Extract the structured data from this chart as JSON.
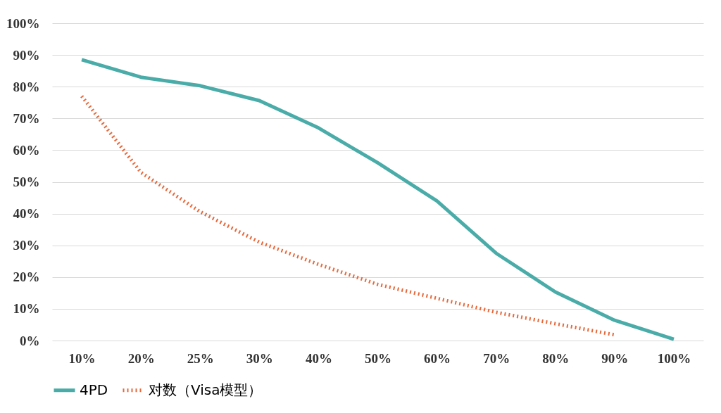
{
  "chart_data": {
    "type": "line",
    "categories": [
      "10%",
      "20%",
      "25%",
      "30%",
      "40%",
      "50%",
      "60%",
      "70%",
      "80%",
      "90%",
      "100%"
    ],
    "series": [
      {
        "name": "4PD",
        "color": "#4aaca8",
        "line_style": "solid",
        "values": [
          88.5,
          83,
          80.3,
          75.6,
          67,
          56,
          44,
          27.5,
          15.3,
          6.4,
          0.4
        ]
      },
      {
        "name": "对数（Visa模型）",
        "color": "#e8683a",
        "line_style": "dotted",
        "values": [
          77,
          53,
          40.6,
          31,
          24,
          17.7,
          13.3,
          8.9,
          5.3,
          1.8,
          null
        ]
      }
    ],
    "ylim": [
      0,
      100
    ],
    "yticks": [
      {
        "value": 0,
        "label": "0%"
      },
      {
        "value": 10,
        "label": "10%"
      },
      {
        "value": 20,
        "label": "20%"
      },
      {
        "value": 30,
        "label": "30%"
      },
      {
        "value": 40,
        "label": "40%"
      },
      {
        "value": 50,
        "label": "50%"
      },
      {
        "value": 60,
        "label": "60%"
      },
      {
        "value": 70,
        "label": "70%"
      },
      {
        "value": 80,
        "label": "80%"
      },
      {
        "value": 90,
        "label": "90%"
      },
      {
        "value": 100,
        "label": "100%"
      }
    ],
    "grid": "y",
    "legend": "bottom",
    "marker": "none"
  }
}
